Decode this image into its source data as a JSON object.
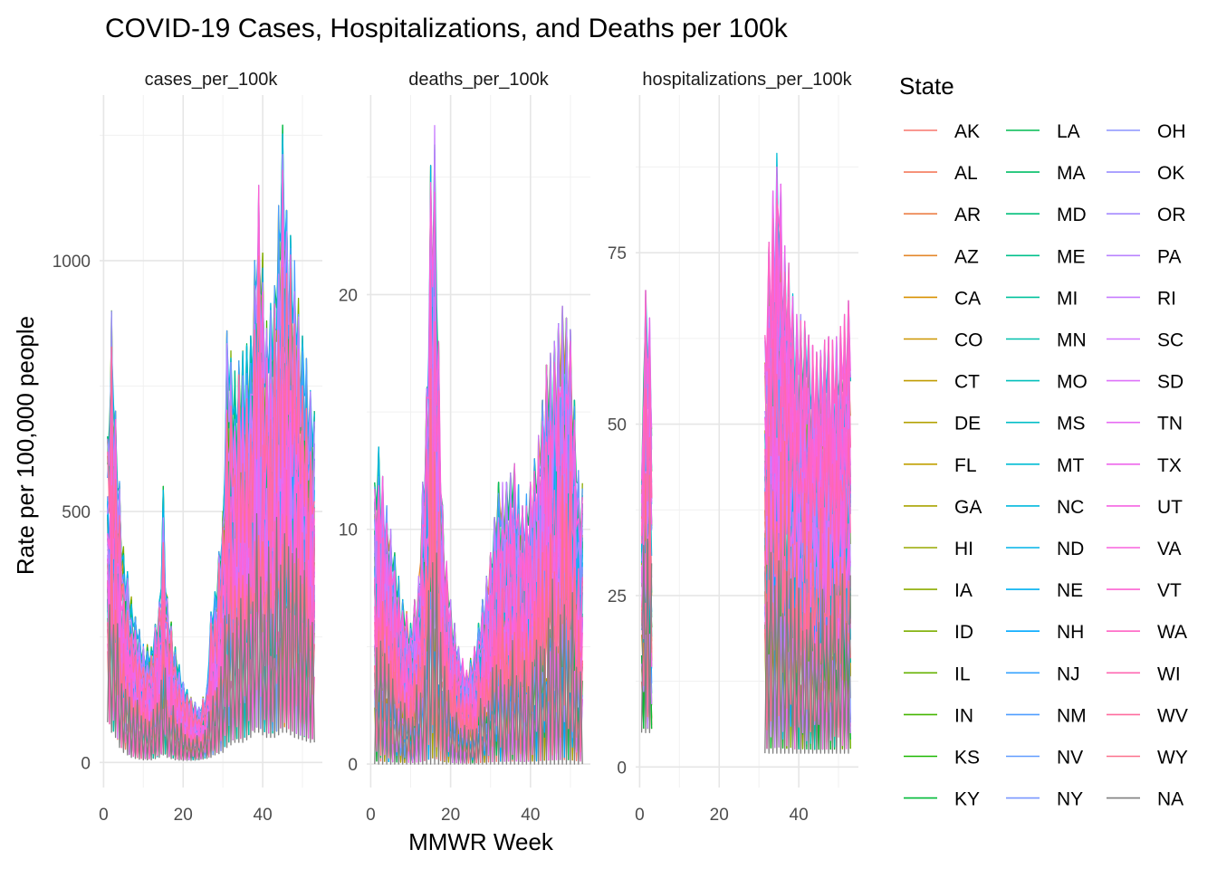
{
  "chart_data": {
    "type": "line",
    "title": "COVID-19 Cases, Hospitalizations, and Deaths per 100k",
    "xlabel": "MMWR Week",
    "ylabel": "Rate per 100,000 people",
    "legend_title": "State",
    "legend_position": "right",
    "grid": true,
    "x_ticks": [
      0,
      20,
      40
    ],
    "facets": [
      {
        "strip": "cases_per_100k",
        "xlim": [
          -1,
          55
        ],
        "ylim": [
          -50,
          1330
        ],
        "y_ticks": [
          0,
          500,
          1000
        ],
        "profile": [
          {
            "x": 1,
            "y": [
              80,
              650
            ]
          },
          {
            "x": 2,
            "y": [
              60,
              900
            ]
          },
          {
            "x": 3,
            "y": [
              50,
              700
            ]
          },
          {
            "x": 4,
            "y": [
              30,
              560
            ]
          },
          {
            "x": 5,
            "y": [
              20,
              430
            ]
          },
          {
            "x": 6,
            "y": [
              15,
              380
            ]
          },
          {
            "x": 7,
            "y": [
              10,
              330
            ]
          },
          {
            "x": 8,
            "y": [
              8,
              290
            ]
          },
          {
            "x": 10,
            "y": [
              5,
              240
            ]
          },
          {
            "x": 12,
            "y": [
              5,
              230
            ]
          },
          {
            "x": 14,
            "y": [
              10,
              320
            ]
          },
          {
            "x": 15,
            "y": [
              15,
              550
            ]
          },
          {
            "x": 16,
            "y": [
              10,
              330
            ]
          },
          {
            "x": 18,
            "y": [
              5,
              230
            ]
          },
          {
            "x": 20,
            "y": [
              4,
              160
            ]
          },
          {
            "x": 22,
            "y": [
              4,
              130
            ]
          },
          {
            "x": 24,
            "y": [
              5,
              110
            ]
          },
          {
            "x": 26,
            "y": [
              8,
              150
            ]
          },
          {
            "x": 27,
            "y": [
              10,
              300
            ]
          },
          {
            "x": 28,
            "y": [
              15,
              340
            ]
          },
          {
            "x": 30,
            "y": [
              20,
              500
            ]
          },
          {
            "x": 31,
            "y": [
              30,
              860
            ]
          },
          {
            "x": 33,
            "y": [
              40,
              780
            ]
          },
          {
            "x": 35,
            "y": [
              40,
              820
            ]
          },
          {
            "x": 37,
            "y": [
              50,
              850
            ]
          },
          {
            "x": 38,
            "y": [
              60,
              1000
            ]
          },
          {
            "x": 39,
            "y": [
              60,
              1150
            ]
          },
          {
            "x": 41,
            "y": [
              50,
              880
            ]
          },
          {
            "x": 43,
            "y": [
              50,
              950
            ]
          },
          {
            "x": 45,
            "y": [
              60,
              1270
            ]
          },
          {
            "x": 46,
            "y": [
              60,
              1100
            ]
          },
          {
            "x": 48,
            "y": [
              50,
              1000
            ]
          },
          {
            "x": 50,
            "y": [
              45,
              850
            ]
          },
          {
            "x": 52,
            "y": [
              40,
              760
            ]
          },
          {
            "x": 53,
            "y": [
              40,
              700
            ]
          }
        ]
      },
      {
        "strip": "deaths_per_100k",
        "xlim": [
          -1,
          55
        ],
        "ylim": [
          -1,
          28.5
        ],
        "y_ticks": [
          0,
          10,
          20
        ],
        "profile": [
          {
            "x": 1,
            "y": [
              0,
              12
            ]
          },
          {
            "x": 2,
            "y": [
              0,
              13.5
            ]
          },
          {
            "x": 4,
            "y": [
              0,
              11
            ]
          },
          {
            "x": 6,
            "y": [
              0,
              9
            ]
          },
          {
            "x": 8,
            "y": [
              0,
              7
            ]
          },
          {
            "x": 10,
            "y": [
              0,
              6
            ]
          },
          {
            "x": 12,
            "y": [
              0,
              8
            ]
          },
          {
            "x": 14,
            "y": [
              0,
              16
            ]
          },
          {
            "x": 15,
            "y": [
              0,
              25.5
            ]
          },
          {
            "x": 16,
            "y": [
              0,
              27.2
            ]
          },
          {
            "x": 17,
            "y": [
              0,
              18
            ]
          },
          {
            "x": 18,
            "y": [
              0,
              11
            ]
          },
          {
            "x": 20,
            "y": [
              0,
              7
            ]
          },
          {
            "x": 22,
            "y": [
              0,
              5
            ]
          },
          {
            "x": 24,
            "y": [
              0,
              4
            ]
          },
          {
            "x": 26,
            "y": [
              0,
              5
            ]
          },
          {
            "x": 28,
            "y": [
              0,
              7
            ]
          },
          {
            "x": 30,
            "y": [
              0,
              9
            ]
          },
          {
            "x": 32,
            "y": [
              0,
              12
            ]
          },
          {
            "x": 34,
            "y": [
              0,
              12
            ]
          },
          {
            "x": 36,
            "y": [
              0,
              12.8
            ]
          },
          {
            "x": 38,
            "y": [
              0,
              11
            ]
          },
          {
            "x": 40,
            "y": [
              0,
              12
            ]
          },
          {
            "x": 42,
            "y": [
              0,
              14
            ]
          },
          {
            "x": 44,
            "y": [
              0,
              17
            ]
          },
          {
            "x": 46,
            "y": [
              0,
              18
            ]
          },
          {
            "x": 48,
            "y": [
              0,
              19.5
            ]
          },
          {
            "x": 50,
            "y": [
              0,
              18.5
            ]
          },
          {
            "x": 52,
            "y": [
              0,
              12.5
            ]
          },
          {
            "x": 53,
            "y": [
              0,
              12
            ]
          }
        ]
      },
      {
        "strip": "hospitalizations_per_100k",
        "xlim": [
          -1,
          55
        ],
        "ylim": [
          -3,
          98
        ],
        "y_ticks": [
          0,
          25,
          50,
          75
        ],
        "profile": [
          {
            "x": 0.5,
            "y": [
              5,
              42
            ]
          },
          {
            "x": 1,
            "y": [
              5,
              70
            ]
          },
          {
            "x": 2,
            "y": [
              5,
              69
            ]
          },
          {
            "x": 3,
            "y": [
              5,
              62
            ]
          },
          {
            "x": 31,
            "y": [
              2,
              55
            ]
          },
          {
            "x": 32,
            "y": [
              2,
              71
            ]
          },
          {
            "x": 33,
            "y": [
              2,
              82
            ]
          },
          {
            "x": 34,
            "y": [
              2,
              86
            ]
          },
          {
            "x": 35,
            "y": [
              2,
              93
            ]
          },
          {
            "x": 36,
            "y": [
              2,
              77
            ]
          },
          {
            "x": 37,
            "y": [
              2,
              75
            ]
          },
          {
            "x": 38,
            "y": [
              2,
              72
            ]
          },
          {
            "x": 39,
            "y": [
              2,
              66
            ]
          },
          {
            "x": 41,
            "y": [
              2,
              66
            ]
          },
          {
            "x": 43,
            "y": [
              2,
              62
            ]
          },
          {
            "x": 45,
            "y": [
              2,
              60
            ]
          },
          {
            "x": 47,
            "y": [
              2,
              63
            ]
          },
          {
            "x": 49,
            "y": [
              2,
              62
            ]
          },
          {
            "x": 51,
            "y": [
              2,
              65
            ]
          },
          {
            "x": 53,
            "y": [
              2,
              69
            ]
          }
        ]
      }
    ],
    "series": [
      {
        "name": "AK",
        "color": "#F8766D"
      },
      {
        "name": "AL",
        "color": "#F47A5C"
      },
      {
        "name": "AR",
        "color": "#EC7F47"
      },
      {
        "name": "AZ",
        "color": "#E3872B"
      },
      {
        "name": "CA",
        "color": "#D89000"
      },
      {
        "name": "CO",
        "color": "#CD9600"
      },
      {
        "name": "CT",
        "color": "#C09B00"
      },
      {
        "name": "DE",
        "color": "#B3A000"
      },
      {
        "name": "FL",
        "color": "#C0A000"
      },
      {
        "name": "GA",
        "color": "#A8A300"
      },
      {
        "name": "HI",
        "color": "#98A800"
      },
      {
        "name": "IA",
        "color": "#8BAB00"
      },
      {
        "name": "ID",
        "color": "#7CAE00"
      },
      {
        "name": "IL",
        "color": "#64B200"
      },
      {
        "name": "IN",
        "color": "#45B500"
      },
      {
        "name": "KS",
        "color": "#1AB800"
      },
      {
        "name": "KY",
        "color": "#00BA38"
      },
      {
        "name": "LA",
        "color": "#00BC52"
      },
      {
        "name": "MA",
        "color": "#00BE67"
      },
      {
        "name": "MD",
        "color": "#00BF7A"
      },
      {
        "name": "ME",
        "color": "#00C08B"
      },
      {
        "name": "MI",
        "color": "#00C19C"
      },
      {
        "name": "MN",
        "color": "#00C0AB"
      },
      {
        "name": "MO",
        "color": "#00BFBA"
      },
      {
        "name": "MS",
        "color": "#00BDC7"
      },
      {
        "name": "MT",
        "color": "#00BCD4"
      },
      {
        "name": "NC",
        "color": "#00B8DE"
      },
      {
        "name": "ND",
        "color": "#00B4E8"
      },
      {
        "name": "NE",
        "color": "#00B0F0"
      },
      {
        "name": "NH",
        "color": "#00A9FF"
      },
      {
        "name": "NJ",
        "color": "#35A2FF"
      },
      {
        "name": "NM",
        "color": "#4F9EFF"
      },
      {
        "name": "NV",
        "color": "#619CFF"
      },
      {
        "name": "NY",
        "color": "#7997FF"
      },
      {
        "name": "OH",
        "color": "#8B93FF"
      },
      {
        "name": "OK",
        "color": "#9A8EFF"
      },
      {
        "name": "OR",
        "color": "#A58AFF"
      },
      {
        "name": "PA",
        "color": "#B983FF"
      },
      {
        "name": "RI",
        "color": "#C77CFF"
      },
      {
        "name": "SC",
        "color": "#D376FF"
      },
      {
        "name": "SD",
        "color": "#DE71F9"
      },
      {
        "name": "TN",
        "color": "#E76BF3"
      },
      {
        "name": "TX",
        "color": "#EE67EB"
      },
      {
        "name": "UT",
        "color": "#F564E3"
      },
      {
        "name": "VA",
        "color": "#F962DD"
      },
      {
        "name": "VT",
        "color": "#FC64D3"
      },
      {
        "name": "WA",
        "color": "#FF64C4"
      },
      {
        "name": "WI",
        "color": "#FF67B2"
      },
      {
        "name": "WV",
        "color": "#FF6C9F"
      },
      {
        "name": "WY",
        "color": "#FC718C"
      },
      {
        "name": "NA",
        "color": "#7F7F7F"
      }
    ]
  }
}
